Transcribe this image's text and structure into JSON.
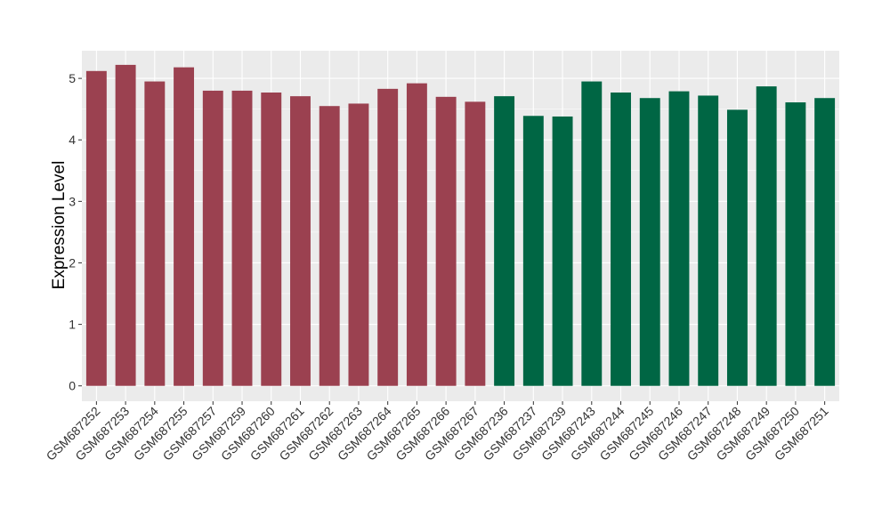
{
  "chart_data": {
    "type": "bar",
    "title": "",
    "xlabel": "",
    "ylabel": "Expression Level",
    "ylim": [
      -0.25,
      5.45
    ],
    "yticks": [
      0,
      1,
      2,
      3,
      4,
      5
    ],
    "grid": true,
    "legend": "none",
    "colors": {
      "group_a": "#9b4150",
      "group_b": "#006644",
      "panel": "#ebebeb",
      "gridline": "#ffffff"
    },
    "categories": [
      "GSM687252",
      "GSM687253",
      "GSM687254",
      "GSM687255",
      "GSM687257",
      "GSM687259",
      "GSM687260",
      "GSM687261",
      "GSM687262",
      "GSM687263",
      "GSM687264",
      "GSM687265",
      "GSM687266",
      "GSM687267",
      "GSM687236",
      "GSM687237",
      "GSM687239",
      "GSM687243",
      "GSM687244",
      "GSM687245",
      "GSM687246",
      "GSM687247",
      "GSM687248",
      "GSM687249",
      "GSM687250",
      "GSM687251"
    ],
    "values": [
      5.12,
      5.22,
      4.95,
      5.18,
      4.8,
      4.8,
      4.77,
      4.71,
      4.55,
      4.59,
      4.83,
      4.92,
      4.7,
      4.62,
      4.71,
      4.39,
      4.38,
      4.95,
      4.77,
      4.68,
      4.79,
      4.72,
      4.49,
      4.87,
      4.61,
      4.68
    ],
    "groups": [
      "a",
      "a",
      "a",
      "a",
      "a",
      "a",
      "a",
      "a",
      "a",
      "a",
      "a",
      "a",
      "a",
      "a",
      "b",
      "b",
      "b",
      "b",
      "b",
      "b",
      "b",
      "b",
      "b",
      "b",
      "b",
      "b"
    ]
  }
}
